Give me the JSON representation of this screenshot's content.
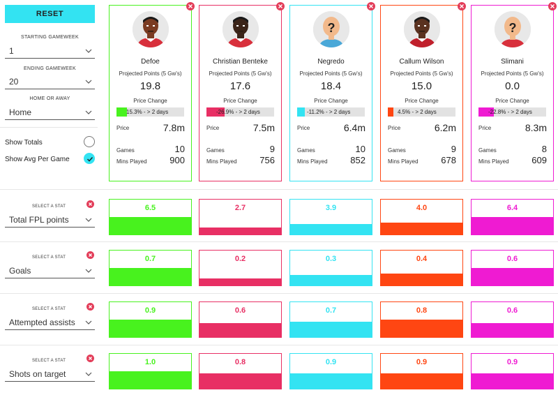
{
  "colors": {
    "accent": "#33e3f2",
    "remove": "#e33d59",
    "players": [
      "#48f21e",
      "#e82f64",
      "#33e3f2",
      "#ff4612",
      "#ef1bd2"
    ]
  },
  "sidebar": {
    "reset_label": "RESET",
    "starting_gameweek_label": "STARTING GAMEWEEK",
    "starting_gameweek_value": "1",
    "ending_gameweek_label": "ENDING GAMEWEEK",
    "ending_gameweek_value": "20",
    "home_away_label": "HOME OR AWAY",
    "home_away_value": "Home",
    "show_totals_label": "Show Totals",
    "show_totals_checked": false,
    "show_avg_label": "Show Avg Per Game",
    "show_avg_checked": true
  },
  "card_labels": {
    "projected": "Projected Points (5 Gw's)",
    "price_change": "Price Change",
    "price": "Price",
    "games": "Games",
    "mins": "Mins Played"
  },
  "players": [
    {
      "name": "Defoe",
      "projected": "19.8",
      "price_change_text": "15.3% - > 2 days",
      "price_change_pct": 0.153,
      "price": "7.8m",
      "games": "10",
      "mins": "900",
      "avatar": "player-photo",
      "skin": "#7a3b22",
      "shirt": "#d8303c"
    },
    {
      "name": "Christian Benteke",
      "projected": "17.6",
      "price_change_text": "-26.9% - > 2 days",
      "price_change_pct": 0.269,
      "price": "7.5m",
      "games": "9",
      "mins": "756",
      "avatar": "player-photo",
      "skin": "#3b2418",
      "shirt": "#d8303c"
    },
    {
      "name": "Negredo",
      "projected": "18.4",
      "price_change_text": "-11.2% - > 2 days",
      "price_change_pct": 0.112,
      "price": "6.4m",
      "games": "10",
      "mins": "852",
      "avatar": "question-mark",
      "skin": "#f2b98b",
      "shirt": "#4aa8d8"
    },
    {
      "name": "Callum Wilson",
      "projected": "15.0",
      "price_change_text": "4.5% - > 2 days",
      "price_change_pct": 0.045,
      "price": "6.2m",
      "games": "9",
      "mins": "678",
      "avatar": "player-photo",
      "skin": "#5a3220",
      "shirt": "#c0202c"
    },
    {
      "name": "Slimani",
      "projected": "0.0",
      "price_change_text": "-22.8% - > 2 days",
      "price_change_pct": 0.228,
      "price": "8.3m",
      "games": "8",
      "mins": "609",
      "avatar": "question-mark",
      "skin": "#f2b98b",
      "shirt": "#d8303c"
    }
  ],
  "stat_rows": [
    {
      "title": "SELECT A STAT",
      "stat": "Total FPL points",
      "values": [
        "6.5",
        "2.7",
        "3.9",
        "4.0",
        "6.4"
      ],
      "fill": [
        0.5,
        0.2,
        0.3,
        0.35,
        0.5
      ]
    },
    {
      "title": "SELECT A STAT",
      "stat": "Goals",
      "values": [
        "0.7",
        "0.2",
        "0.3",
        "0.4",
        "0.6"
      ],
      "fill": [
        0.5,
        0.2,
        0.3,
        0.35,
        0.5
      ]
    },
    {
      "title": "SELECT A STAT",
      "stat": "Attempted assists",
      "values": [
        "0.9",
        "0.6",
        "0.7",
        "0.8",
        "0.6"
      ],
      "fill": [
        0.5,
        0.4,
        0.45,
        0.5,
        0.4
      ]
    },
    {
      "title": "SELECT A STAT",
      "stat": "Shots on target",
      "values": [
        "1.0",
        "0.8",
        "0.9",
        "0.9",
        "0.9"
      ],
      "fill": [
        0.5,
        0.45,
        0.45,
        0.45,
        0.45
      ]
    }
  ]
}
